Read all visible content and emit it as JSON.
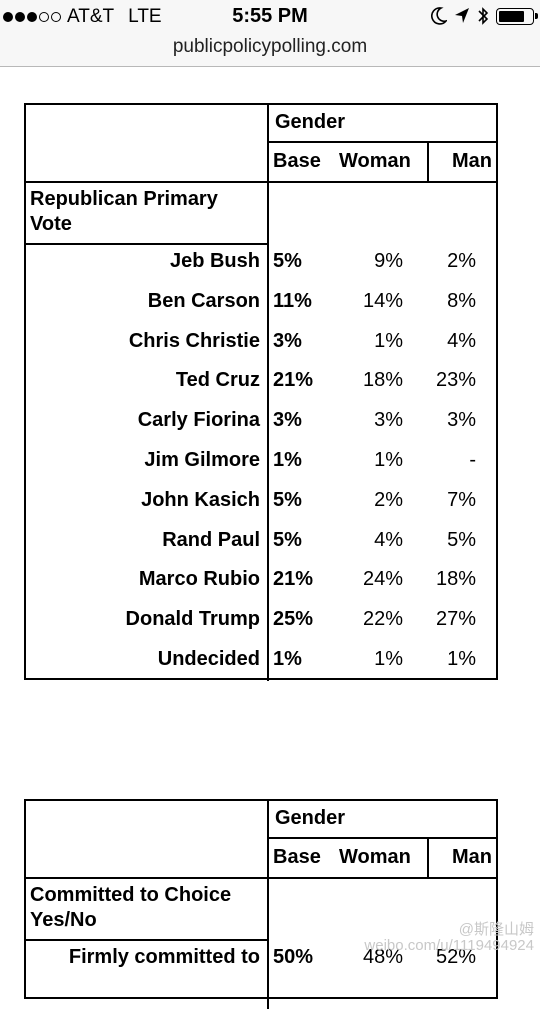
{
  "status_bar": {
    "carrier": "AT&T",
    "network": "LTE",
    "time": "5:55 PM",
    "signal_bars": 3,
    "signal_total": 5,
    "battery_level": 0.82
  },
  "url": "publicpolicypolling.com",
  "tables": [
    {
      "header": {
        "group_label": "Gender",
        "base_label": "Base",
        "col1": "Woman",
        "col2": "Man"
      },
      "question": "Republican Primary Vote",
      "rows": [
        {
          "name": "Jeb Bush",
          "base": "5%",
          "woman": "9%",
          "man": "2%"
        },
        {
          "name": "Ben Carson",
          "base": "11%",
          "woman": "14%",
          "man": "8%"
        },
        {
          "name": "Chris Christie",
          "base": "3%",
          "woman": "1%",
          "man": "4%"
        },
        {
          "name": "Ted Cruz",
          "base": "21%",
          "woman": "18%",
          "man": "23%"
        },
        {
          "name": "Carly Fiorina",
          "base": "3%",
          "woman": "3%",
          "man": "3%"
        },
        {
          "name": "Jim Gilmore",
          "base": "1%",
          "woman": "1%",
          "man": "-"
        },
        {
          "name": "John Kasich",
          "base": "5%",
          "woman": "2%",
          "man": "7%"
        },
        {
          "name": "Rand Paul",
          "base": "5%",
          "woman": "4%",
          "man": "5%"
        },
        {
          "name": "Marco Rubio",
          "base": "21%",
          "woman": "24%",
          "man": "18%"
        },
        {
          "name": "Donald Trump",
          "base": "25%",
          "woman": "22%",
          "man": "27%"
        },
        {
          "name": "Undecided",
          "base": "1%",
          "woman": "1%",
          "man": "1%"
        }
      ]
    },
    {
      "header": {
        "group_label": "Gender",
        "base_label": "Base",
        "col1": "Woman",
        "col2": "Man"
      },
      "question": "Committed to Choice Yes/No",
      "rows": [
        {
          "name": "Firmly committed to",
          "base": "50%",
          "woman": "48%",
          "man": "52%"
        }
      ]
    }
  ],
  "watermark": {
    "handle": "@斯隆山姆",
    "site": "weibo.com/u/1119494924"
  },
  "icons": [
    "moon-icon",
    "location-arrow-icon",
    "bluetooth-icon",
    "battery-icon"
  ]
}
